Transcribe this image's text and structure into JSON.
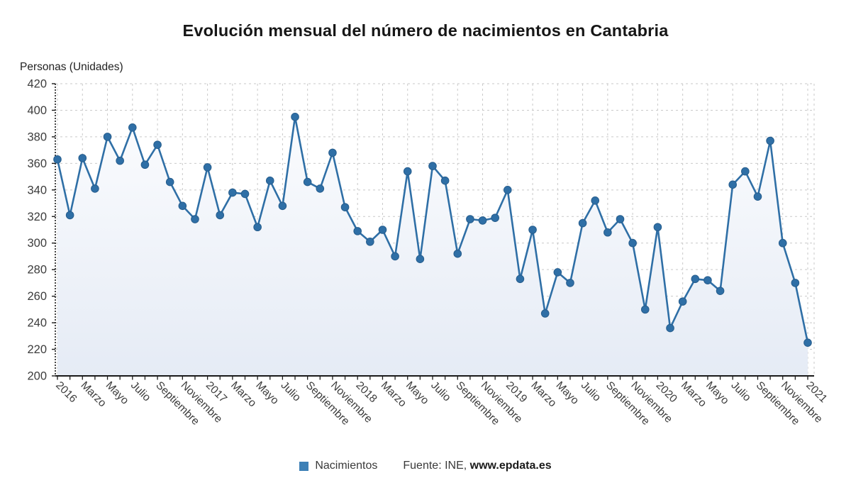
{
  "header": {
    "title": "Evolución mensual del número de nacimientos en Cantabria"
  },
  "axis_title": "Personas (Unidades)",
  "legend": {
    "label": "Nacimientos"
  },
  "source": {
    "prefix": "Fuente: INE, ",
    "link": "www.epdata.es"
  },
  "colors": {
    "line": "#2f6fa6",
    "marker_fill": "#2f6fa6",
    "marker_stroke": "#265d8d",
    "legend_swatch": "#3d80b6",
    "grid": "#c9c9c9",
    "axis": "#1a1a1a",
    "label": "#3c3c3c",
    "area_top": "#fbfcfe",
    "area_bottom": "#e5ebf5"
  },
  "chart_data": {
    "type": "area",
    "title": "Evolución mensual del número de nacimientos en Cantabria",
    "ylabel": "Personas (Unidades)",
    "ylim": [
      200,
      420
    ],
    "ytick_step": 20,
    "grid": true,
    "legend_position": "bottom",
    "tick_labels": [
      "2016",
      "Marzo",
      "Mayo",
      "Julio",
      "Septiembre",
      "Noviembre",
      "2017",
      "Marzo",
      "Mayo",
      "Julio",
      "Septiembre",
      "Noviembre",
      "2018",
      "Marzo",
      "Mayo",
      "Julio",
      "Septiembre",
      "Noviembre",
      "2019",
      "Marzo",
      "Mayo",
      "Julio",
      "Septiembre",
      "Noviembre",
      "2020",
      "Marzo",
      "Mayo",
      "Julio",
      "Septiembre",
      "Noviembre",
      "2021"
    ],
    "tick_every_n_points": 2,
    "series": [
      {
        "name": "Nacimientos",
        "values": [
          363,
          321,
          364,
          341,
          380,
          362,
          387,
          359,
          374,
          346,
          328,
          318,
          357,
          321,
          338,
          337,
          312,
          347,
          328,
          395,
          346,
          341,
          368,
          327,
          309,
          301,
          310,
          290,
          354,
          288,
          358,
          347,
          292,
          318,
          317,
          319,
          340,
          273,
          310,
          247,
          278,
          270,
          315,
          332,
          308,
          318,
          300,
          250,
          312,
          236,
          256,
          273,
          272,
          264,
          344,
          354,
          335,
          377,
          300,
          270,
          225
        ]
      }
    ]
  }
}
